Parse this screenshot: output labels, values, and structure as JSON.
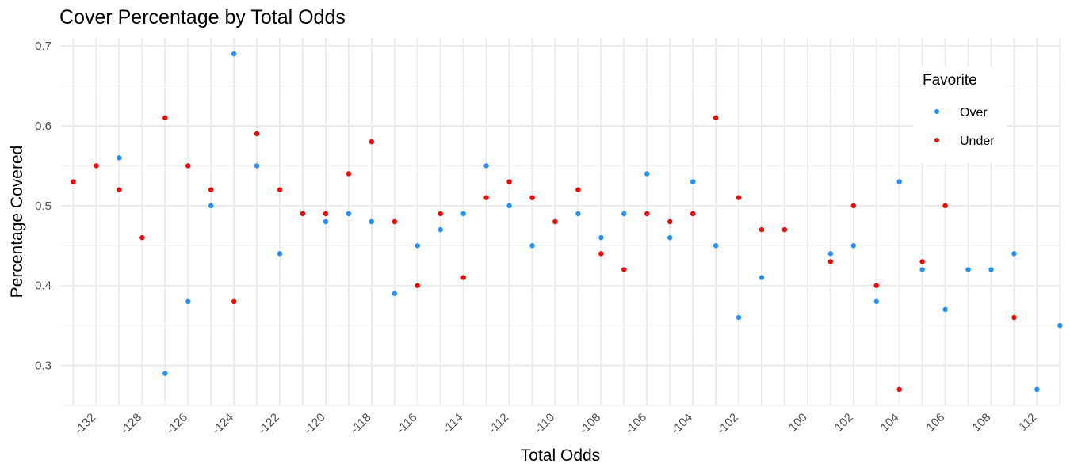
{
  "chart_data": {
    "type": "scatter",
    "title": "Cover Percentage by Total Odds",
    "xlabel": "Total Odds",
    "ylabel": "Percentage Covered",
    "categories": [
      "-134",
      "-132",
      "-130",
      "-128",
      "-127",
      "-126",
      "-125",
      "-124",
      "-123",
      "-122",
      "-121",
      "-120",
      "-119",
      "-118",
      "-117",
      "-116",
      "-115",
      "-114",
      "-113",
      "-112",
      "-111",
      "-110",
      "-109",
      "-108",
      "-107",
      "-106",
      "-105",
      "-104",
      "-103",
      "-102",
      "-101",
      "-100",
      "100",
      "101",
      "102",
      "103",
      "104",
      "105",
      "106",
      "107",
      "108",
      "110",
      "112",
      "114"
    ],
    "tick_labels": [
      "-132",
      "-128",
      "-126",
      "-124",
      "-122",
      "-120",
      "-118",
      "-116",
      "-114",
      "-112",
      "-110",
      "-108",
      "-106",
      "-104",
      "-102",
      "100",
      "102",
      "104",
      "106",
      "108",
      "112"
    ],
    "ylim": [
      0.25,
      0.71
    ],
    "y_ticks": [
      "0.3",
      "0.4",
      "0.5",
      "0.6",
      "0.7"
    ],
    "grid": true,
    "legend_position": "top-right",
    "legend_title": "Favorite",
    "series": [
      {
        "name": "Over",
        "color": "#1e90ff",
        "points": [
          [
            "-130",
            0.56
          ],
          [
            "-127",
            0.29
          ],
          [
            "-126",
            0.38
          ],
          [
            "-125",
            0.5
          ],
          [
            "-124",
            0.69
          ],
          [
            "-123",
            0.55
          ],
          [
            "-122",
            0.44
          ],
          [
            "-121",
            0.49
          ],
          [
            "-120",
            0.48
          ],
          [
            "-119",
            0.49
          ],
          [
            "-118",
            0.48
          ],
          [
            "-117",
            0.39
          ],
          [
            "-116",
            0.45
          ],
          [
            "-115",
            0.47
          ],
          [
            "-114",
            0.49
          ],
          [
            "-113",
            0.55
          ],
          [
            "-112",
            0.5
          ],
          [
            "-111",
            0.45
          ],
          [
            "-110",
            0.48
          ],
          [
            "-109",
            0.49
          ],
          [
            "-108",
            0.46
          ],
          [
            "-107",
            0.49
          ],
          [
            "-106",
            0.54
          ],
          [
            "-105",
            0.46
          ],
          [
            "-104",
            0.53
          ],
          [
            "-103",
            0.45
          ],
          [
            "-102",
            0.36
          ],
          [
            "-101",
            0.41
          ],
          [
            "-100",
            0.47
          ],
          [
            "101",
            0.44
          ],
          [
            "102",
            0.45
          ],
          [
            "103",
            0.38
          ],
          [
            "104",
            0.53
          ],
          [
            "105",
            0.42
          ],
          [
            "106",
            0.37
          ],
          [
            "107",
            0.42
          ],
          [
            "108",
            0.42
          ],
          [
            "110",
            0.44
          ],
          [
            "112",
            0.27
          ],
          [
            "114",
            0.35
          ]
        ]
      },
      {
        "name": "Under",
        "color": "#ff0000",
        "points": [
          [
            "-134",
            0.53
          ],
          [
            "-132",
            0.55
          ],
          [
            "-130",
            0.52
          ],
          [
            "-128",
            0.46
          ],
          [
            "-127",
            0.61
          ],
          [
            "-126",
            0.55
          ],
          [
            "-125",
            0.52
          ],
          [
            "-124",
            0.38
          ],
          [
            "-123",
            0.59
          ],
          [
            "-122",
            0.52
          ],
          [
            "-121",
            0.49
          ],
          [
            "-120",
            0.49
          ],
          [
            "-119",
            0.54
          ],
          [
            "-118",
            0.58
          ],
          [
            "-117",
            0.48
          ],
          [
            "-116",
            0.4
          ],
          [
            "-115",
            0.49
          ],
          [
            "-114",
            0.41
          ],
          [
            "-113",
            0.51
          ],
          [
            "-112",
            0.53
          ],
          [
            "-111",
            0.51
          ],
          [
            "-110",
            0.48
          ],
          [
            "-109",
            0.52
          ],
          [
            "-108",
            0.44
          ],
          [
            "-107",
            0.42
          ],
          [
            "-106",
            0.49
          ],
          [
            "-105",
            0.48
          ],
          [
            "-104",
            0.49
          ],
          [
            "-103",
            0.61
          ],
          [
            "-102",
            0.51
          ],
          [
            "-101",
            0.47
          ],
          [
            "-100",
            0.47
          ],
          [
            "101",
            0.43
          ],
          [
            "102",
            0.5
          ],
          [
            "103",
            0.4
          ],
          [
            "104",
            0.27
          ],
          [
            "105",
            0.43
          ],
          [
            "106",
            0.5
          ],
          [
            "110",
            0.36
          ]
        ]
      }
    ]
  }
}
